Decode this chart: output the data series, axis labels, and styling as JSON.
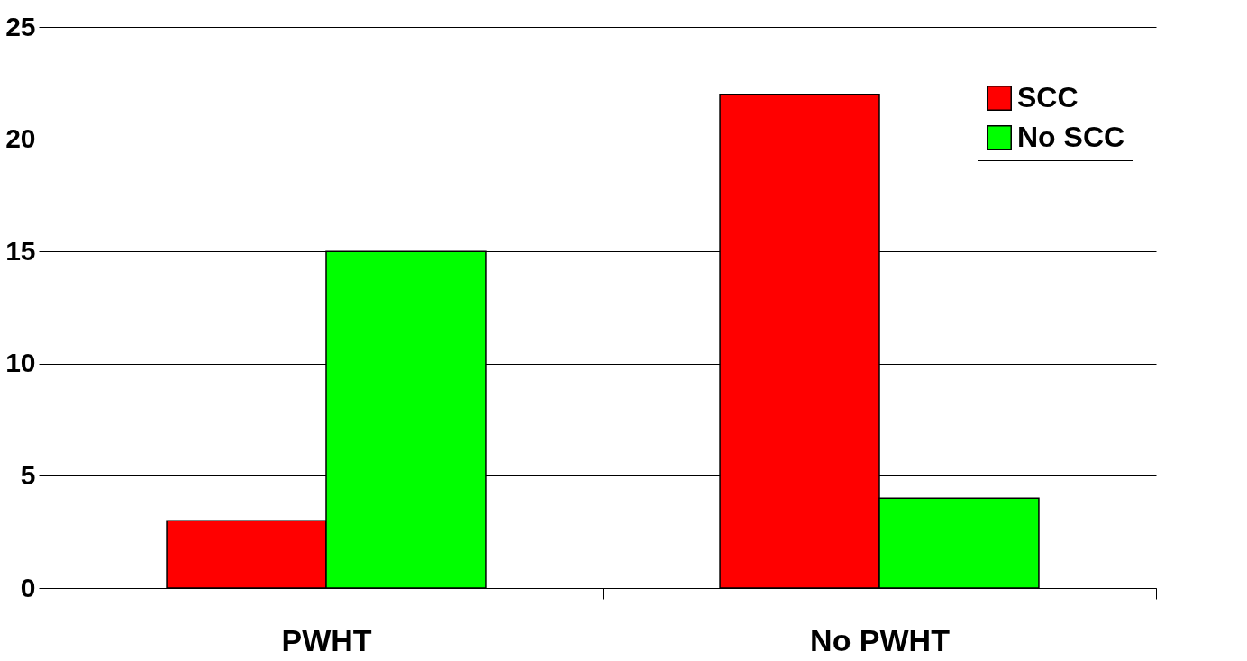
{
  "chart_data": {
    "type": "bar",
    "categories": [
      "PWHT",
      "No PWHT"
    ],
    "series": [
      {
        "name": "SCC",
        "color": "#ff0000",
        "values": [
          3,
          22
        ]
      },
      {
        "name": "No SCC",
        "color": "#00ff00",
        "values": [
          15,
          4
        ]
      }
    ],
    "ylim": [
      0,
      25
    ],
    "yticks": [
      0,
      5,
      10,
      15,
      20,
      25
    ],
    "grid": "y",
    "legend": "top right"
  }
}
